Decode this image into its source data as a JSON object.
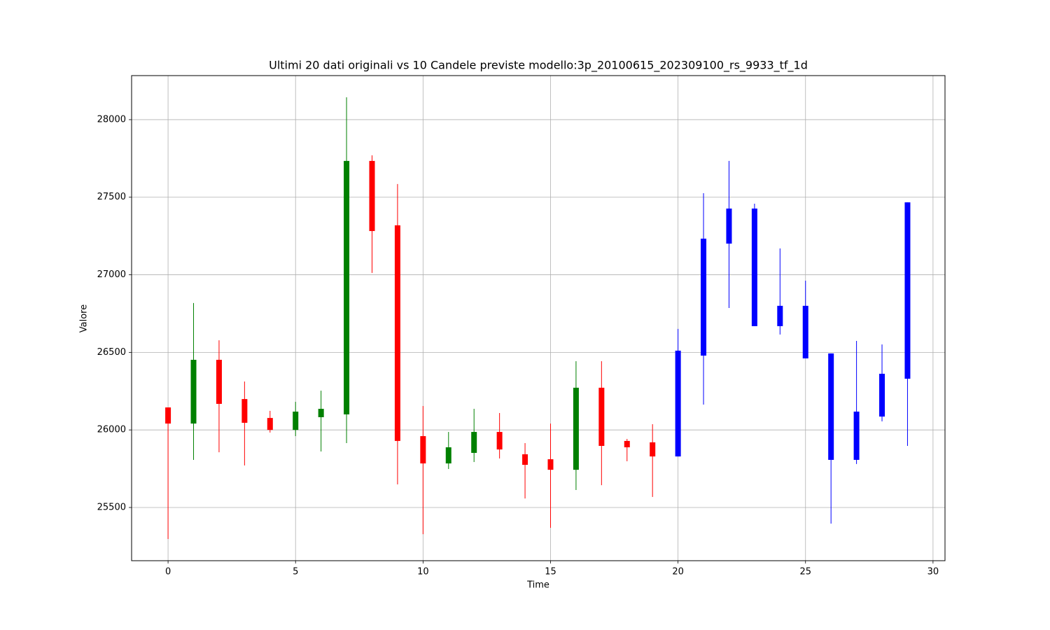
{
  "chart_data": {
    "type": "candlestick",
    "title": "Ultimi 20 dati originali vs 10 Candele previste modello:3p_20100615_202309100_rs_9933_tf_1d",
    "x_label": "Time",
    "y_label": "Valore",
    "xlim": [
      -1.43,
      30.47
    ],
    "ylim": [
      25157,
      28284
    ],
    "xticks": [
      0,
      5,
      10,
      15,
      20,
      25,
      30
    ],
    "yticks": [
      25500,
      26000,
      26500,
      27000,
      27500,
      28000
    ],
    "grid": true,
    "series": [
      {
        "up_color": "green",
        "down_color": "red",
        "x": [
          0,
          1,
          2,
          3,
          4,
          5,
          6,
          7,
          8,
          9,
          10,
          11,
          12,
          13,
          14,
          15,
          16,
          17,
          18,
          19
        ],
        "open": [
          26145,
          26041,
          26452,
          26199,
          26077,
          26000,
          26082,
          26100,
          27734,
          27319,
          25960,
          25784,
          25852,
          25987,
          25843,
          25811,
          25743,
          26272,
          25929,
          25920
        ],
        "high": [
          26145,
          26818,
          26578,
          26312,
          26123,
          26181,
          26253,
          28144,
          27770,
          27585,
          26154,
          25987,
          26136,
          26109,
          25915,
          26041,
          26443,
          26443,
          25942,
          26037
        ],
        "low": [
          25297,
          25807,
          25856,
          25771,
          25983,
          25960,
          25861,
          25915,
          27012,
          25649,
          25328,
          25748,
          25793,
          25816,
          25558,
          25369,
          25613,
          25644,
          25798,
          25568
        ],
        "close": [
          26041,
          26452,
          26168,
          26046,
          26000,
          26118,
          26136,
          27734,
          27282,
          25929,
          25784,
          25888,
          25987,
          25874,
          25775,
          25743,
          26272,
          25897,
          25888,
          25829
        ]
      },
      {
        "color": "blue",
        "x": [
          20,
          21,
          22,
          23,
          24,
          25,
          26,
          27,
          28,
          29
        ],
        "open": [
          25829,
          26479,
          27201,
          27427,
          26669,
          26800,
          26493,
          25807,
          26086,
          26330
        ],
        "high": [
          26651,
          27526,
          27734,
          27458,
          27170,
          26962,
          26493,
          26574,
          26551,
          27467
        ],
        "low": [
          25829,
          26163,
          26786,
          26669,
          26615,
          26461,
          25396,
          25780,
          26055,
          25897
        ],
        "close": [
          26511,
          27233,
          27427,
          26669,
          26800,
          26461,
          25807,
          26118,
          26362,
          27467
        ]
      }
    ]
  }
}
